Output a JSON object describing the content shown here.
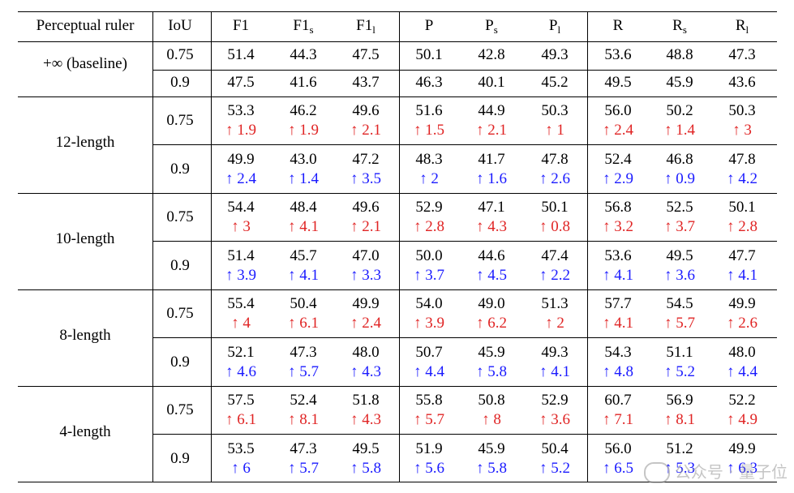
{
  "table": {
    "headers": [
      "Perceptual ruler",
      "IoU",
      "F1",
      "F1",
      "F1",
      "P",
      "P",
      "P",
      "R",
      "R",
      "R"
    ],
    "header_subscripts": [
      "",
      "",
      "",
      "s",
      "l",
      "",
      "s",
      "l",
      "",
      "s",
      "l"
    ],
    "baseline_label": "+∞ (baseline)",
    "baseline_rows": [
      {
        "iou": "0.75",
        "values": [
          "51.4",
          "44.3",
          "47.5",
          "50.1",
          "42.8",
          "49.3",
          "53.6",
          "48.8",
          "47.3"
        ]
      },
      {
        "iou": "0.9",
        "values": [
          "47.5",
          "41.6",
          "43.7",
          "46.3",
          "40.1",
          "45.2",
          "49.5",
          "45.9",
          "43.6"
        ]
      }
    ],
    "groups": [
      {
        "label": "12-length",
        "rows": [
          {
            "iou": "0.75",
            "values": [
              "53.3",
              "46.2",
              "49.6",
              "51.6",
              "44.9",
              "50.3",
              "56.0",
              "50.2",
              "50.3"
            ],
            "deltas": [
              "↑ 1.9",
              "↑ 1.9",
              "↑ 2.1",
              "↑ 1.5",
              "↑ 2.1",
              "↑ 1",
              "↑ 2.4",
              "↑ 1.4",
              "↑ 3"
            ],
            "delta_color": "up"
          },
          {
            "iou": "0.9",
            "values": [
              "49.9",
              "43.0",
              "47.2",
              "48.3",
              "41.7",
              "47.8",
              "52.4",
              "46.8",
              "47.8"
            ],
            "deltas": [
              "↑ 2.4",
              "↑ 1.4",
              "↑ 3.5",
              "↑ 2",
              "↑ 1.6",
              "↑ 2.6",
              "↑ 2.9",
              "↑ 0.9",
              "↑ 4.2"
            ],
            "delta_color": "down"
          }
        ]
      },
      {
        "label": "10-length",
        "rows": [
          {
            "iou": "0.75",
            "values": [
              "54.4",
              "48.4",
              "49.6",
              "52.9",
              "47.1",
              "50.1",
              "56.8",
              "52.5",
              "50.1"
            ],
            "deltas": [
              "↑ 3",
              "↑ 4.1",
              "↑ 2.1",
              "↑ 2.8",
              "↑ 4.3",
              "↑ 0.8",
              "↑ 3.2",
              "↑ 3.7",
              "↑ 2.8"
            ],
            "delta_color": "up"
          },
          {
            "iou": "0.9",
            "values": [
              "51.4",
              "45.7",
              "47.0",
              "50.0",
              "44.6",
              "47.4",
              "53.6",
              "49.5",
              "47.7"
            ],
            "deltas": [
              "↑ 3.9",
              "↑ 4.1",
              "↑ 3.3",
              "↑ 3.7",
              "↑ 4.5",
              "↑ 2.2",
              "↑ 4.1",
              "↑ 3.6",
              "↑ 4.1"
            ],
            "delta_color": "down"
          }
        ]
      },
      {
        "label": "8-length",
        "rows": [
          {
            "iou": "0.75",
            "values": [
              "55.4",
              "50.4",
              "49.9",
              "54.0",
              "49.0",
              "51.3",
              "57.7",
              "54.5",
              "49.9"
            ],
            "deltas": [
              "↑ 4",
              "↑ 6.1",
              "↑ 2.4",
              "↑ 3.9",
              "↑ 6.2",
              "↑ 2",
              "↑ 4.1",
              "↑ 5.7",
              "↑ 2.6"
            ],
            "delta_color": "up"
          },
          {
            "iou": "0.9",
            "values": [
              "52.1",
              "47.3",
              "48.0",
              "50.7",
              "45.9",
              "49.3",
              "54.3",
              "51.1",
              "48.0"
            ],
            "deltas": [
              "↑ 4.6",
              "↑ 5.7",
              "↑ 4.3",
              "↑ 4.4",
              "↑ 5.8",
              "↑ 4.1",
              "↑ 4.8",
              "↑ 5.2",
              "↑ 4.4"
            ],
            "delta_color": "down"
          }
        ]
      },
      {
        "label": "4-length",
        "rows": [
          {
            "iou": "0.75",
            "values": [
              "57.5",
              "52.4",
              "51.8",
              "55.8",
              "50.8",
              "52.9",
              "60.7",
              "56.9",
              "52.2"
            ],
            "deltas": [
              "↑ 6.1",
              "↑ 8.1",
              "↑ 4.3",
              "↑ 5.7",
              "↑ 8",
              "↑ 3.6",
              "↑ 7.1",
              "↑ 8.1",
              "↑ 4.9"
            ],
            "delta_color": "up"
          },
          {
            "iou": "0.9",
            "values": [
              "53.5",
              "47.3",
              "49.5",
              "51.9",
              "45.9",
              "50.4",
              "56.0",
              "51.2",
              "49.9"
            ],
            "deltas": [
              "↑ 6",
              "↑ 5.7",
              "↑ 5.8",
              "↑ 5.6",
              "↑ 5.8",
              "↑ 5.2",
              "↑ 6.5",
              "↑ 5.3",
              "↑ 6.3"
            ],
            "delta_color": "down"
          }
        ]
      }
    ],
    "colors": {
      "up": "#e02424",
      "down": "#1a1aff"
    }
  },
  "watermark": {
    "text": "公众号 · 量子位",
    "icon": "wechat-icon"
  }
}
